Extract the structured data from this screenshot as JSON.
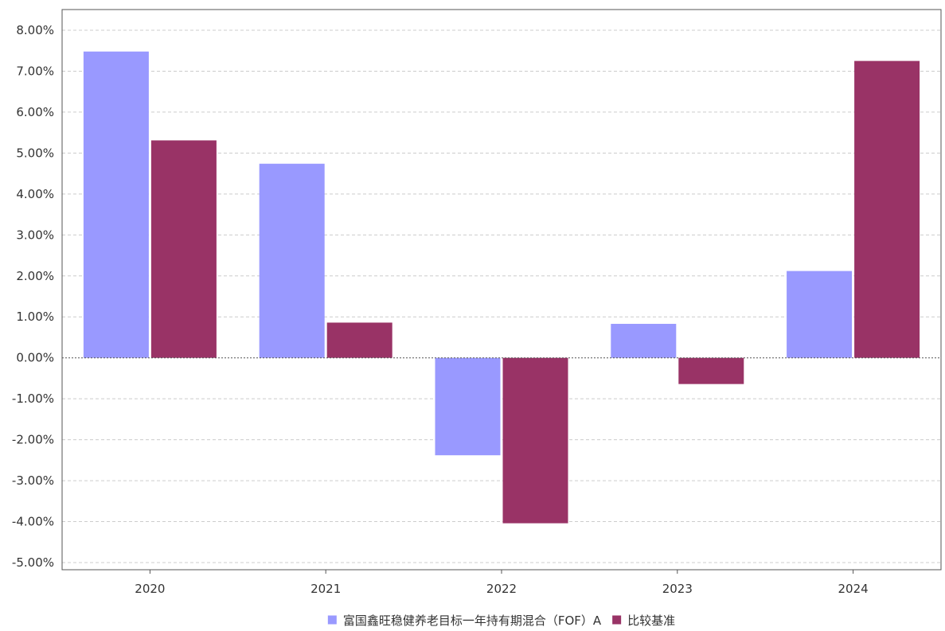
{
  "chart_data": {
    "type": "bar",
    "categories": [
      "2020",
      "2021",
      "2022",
      "2023",
      "2024"
    ],
    "series": [
      {
        "name": "富国鑫旺稳健养老目标一年持有期混合（FOF）A",
        "color": "#9999ff",
        "values": [
          7.48,
          4.74,
          -2.38,
          0.83,
          2.12
        ]
      },
      {
        "name": "比较基准",
        "color": "#993366",
        "values": [
          5.31,
          0.86,
          -4.04,
          -0.64,
          7.25
        ]
      }
    ],
    "ylim": [
      -5,
      8
    ],
    "yticks": [
      8,
      7,
      6,
      5,
      4,
      3,
      2,
      1,
      0,
      -1,
      -2,
      -3,
      -4,
      -5
    ],
    "ytick_labels": [
      "8.00%",
      "7.00%",
      "6.00%",
      "5.00%",
      "4.00%",
      "3.00%",
      "2.00%",
      "1.00%",
      "0.00%",
      "-1.00%",
      "-2.00%",
      "-3.00%",
      "-4.00%",
      "-5.00%"
    ],
    "grid": true,
    "legend": "bottom-center",
    "title": "",
    "xlabel": "",
    "ylabel": ""
  }
}
